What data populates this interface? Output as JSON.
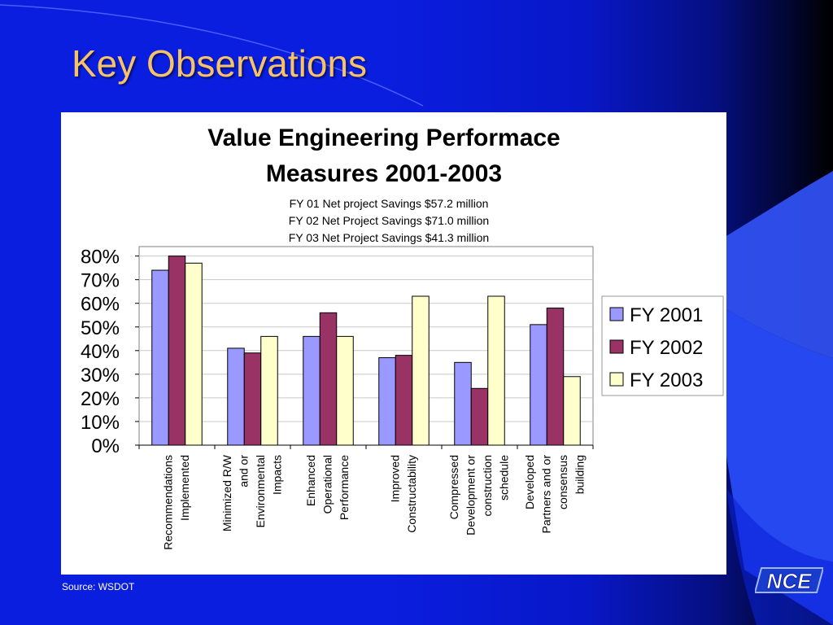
{
  "slide": {
    "title": "Key Observations",
    "source": "Source: WSDOT",
    "logo_text": "NCE"
  },
  "colors": {
    "background": "#0a1ee0",
    "title": "#f5c26b",
    "fy2001": "#9999ff",
    "fy2002": "#993366",
    "fy2003": "#ffffcc"
  },
  "chart_data": {
    "type": "bar",
    "title_lines": [
      "Value Engineering Performace",
      "Measures 2001-2003"
    ],
    "subtitle_lines": [
      "FY 01 Net project Savings $57.2 million",
      "FY 02 Net Project Savings $71.0 million",
      "FY 03 Net Project Savings $41.3 million"
    ],
    "categories": [
      [
        "Recommendations",
        "Implemented"
      ],
      [
        "Minimized  R/W",
        "and or",
        "Environmental",
        "Impacts"
      ],
      [
        "Enhanced",
        "Operational",
        "Performance"
      ],
      [
        "Improved",
        "Constructability"
      ],
      [
        "Compressed",
        "Development or",
        "construction",
        "schedule"
      ],
      [
        "Developed",
        "Partners and or",
        "consensus",
        "building"
      ]
    ],
    "series": [
      {
        "name": "FY 2001",
        "values": [
          74,
          41,
          46,
          37,
          35,
          51
        ]
      },
      {
        "name": "FY 2002",
        "values": [
          80,
          39,
          56,
          38,
          24,
          58
        ]
      },
      {
        "name": "FY 2003",
        "values": [
          77,
          46,
          46,
          63,
          63,
          29
        ]
      }
    ],
    "ylim": [
      0,
      80
    ],
    "yticks": [
      "0%",
      "10%",
      "20%",
      "30%",
      "40%",
      "50%",
      "60%",
      "70%",
      "80%"
    ],
    "grid": true,
    "legend_position": "right"
  }
}
